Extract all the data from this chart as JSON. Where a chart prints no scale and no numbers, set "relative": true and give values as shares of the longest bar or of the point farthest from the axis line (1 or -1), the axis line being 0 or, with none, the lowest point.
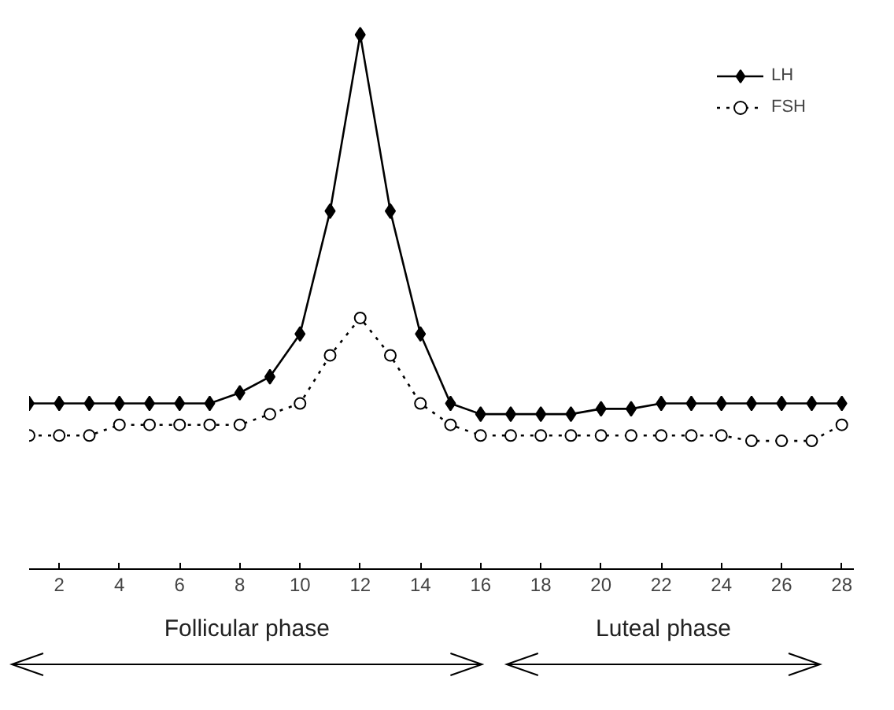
{
  "chart_data": {
    "type": "line",
    "relative": true,
    "x": [
      1,
      2,
      3,
      4,
      5,
      6,
      7,
      8,
      9,
      10,
      11,
      12,
      13,
      14,
      15,
      16,
      17,
      18,
      19,
      20,
      21,
      22,
      23,
      24,
      25,
      26,
      27,
      28
    ],
    "xlim": [
      1,
      28.4
    ],
    "xticks": [
      2,
      4,
      6,
      8,
      10,
      12,
      14,
      16,
      18,
      20,
      22,
      24,
      26,
      28
    ],
    "series": [
      {
        "name": "LH",
        "color": "#000000",
        "marker": "diamond",
        "line_style": "solid",
        "values": [
          0.31,
          0.31,
          0.31,
          0.31,
          0.31,
          0.31,
          0.31,
          0.33,
          0.36,
          0.44,
          0.67,
          1,
          0.67,
          0.44,
          0.31,
          0.29,
          0.29,
          0.29,
          0.29,
          0.3,
          0.3,
          0.31,
          0.31,
          0.31,
          0.31,
          0.31,
          0.31,
          0.31
        ]
      },
      {
        "name": "FSH",
        "color": "#000000",
        "marker": "circle",
        "line_style": "dotted",
        "values": [
          0.25,
          0.25,
          0.25,
          0.27,
          0.27,
          0.27,
          0.27,
          0.27,
          0.29,
          0.31,
          0.4,
          0.47,
          0.4,
          0.31,
          0.27,
          0.25,
          0.25,
          0.25,
          0.25,
          0.25,
          0.25,
          0.25,
          0.25,
          0.25,
          0.24,
          0.24,
          0.24,
          0.27
        ]
      }
    ],
    "legend": "top right",
    "grid": false,
    "annotations": [
      "Follicular phase",
      "Luteal phase"
    ]
  }
}
